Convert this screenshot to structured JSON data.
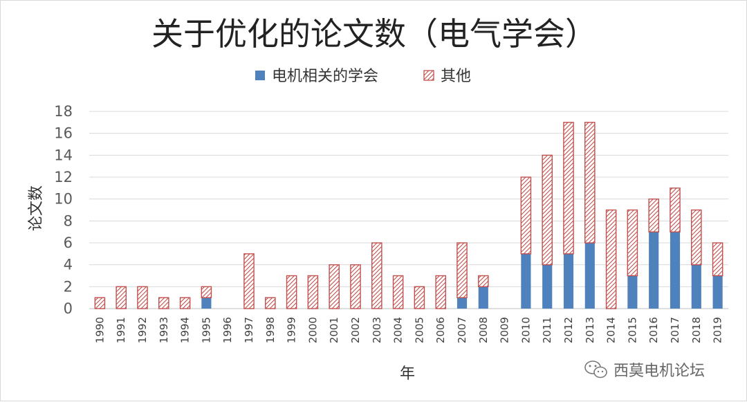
{
  "chart_data": {
    "type": "bar",
    "stacked": true,
    "title": "关于优化的论文数（电气学会）",
    "xlabel": "年",
    "ylabel": "论文数",
    "ylim": [
      0,
      18
    ],
    "yticks": [
      0,
      2,
      4,
      6,
      8,
      10,
      12,
      14,
      16,
      18
    ],
    "grid": true,
    "legend_position": "top",
    "categories": [
      "1990",
      "1991",
      "1992",
      "1993",
      "1994",
      "1995",
      "1996",
      "1997",
      "1998",
      "1999",
      "2000",
      "2001",
      "2002",
      "2003",
      "2004",
      "2005",
      "2006",
      "2007",
      "2008",
      "2009",
      "2010",
      "2011",
      "2012",
      "2013",
      "2014",
      "2015",
      "2016",
      "2017",
      "2018",
      "2019"
    ],
    "series": [
      {
        "name": "电机相关的学会",
        "color": "#4f81bd",
        "values": [
          0,
          0,
          0,
          0,
          0,
          1,
          0,
          0,
          0,
          0,
          0,
          0,
          0,
          0,
          0,
          0,
          0,
          1,
          2,
          0,
          5,
          4,
          5,
          6,
          0,
          3,
          7,
          7,
          4,
          3
        ]
      },
      {
        "name": "其他",
        "color": "#c0504d",
        "pattern": "hatched",
        "values": [
          1,
          2,
          2,
          1,
          1,
          1,
          0,
          5,
          1,
          3,
          3,
          4,
          4,
          6,
          3,
          2,
          3,
          5,
          1,
          0,
          7,
          10,
          12,
          11,
          9,
          6,
          3,
          4,
          5,
          3
        ]
      }
    ]
  },
  "watermark": {
    "text": "西莫电机论坛",
    "icon": "wechat-icon"
  }
}
